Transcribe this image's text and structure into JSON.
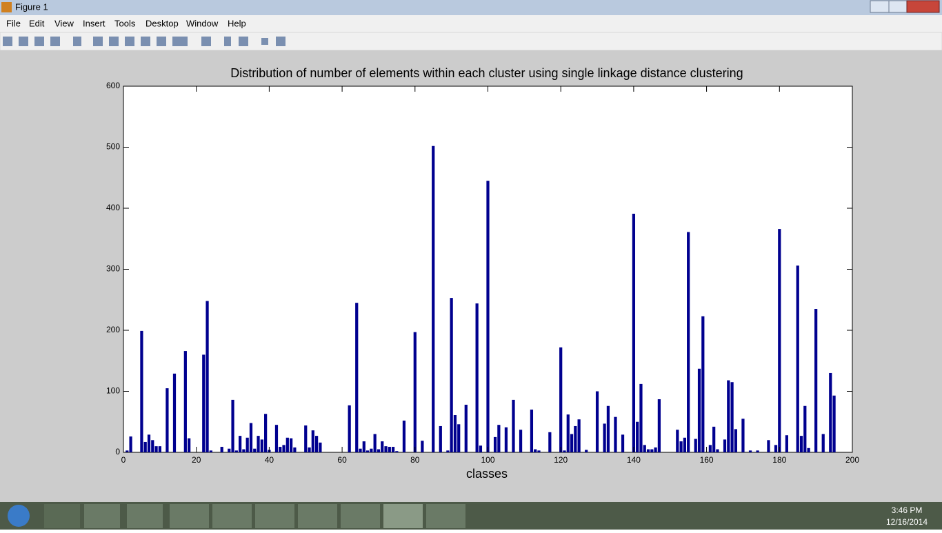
{
  "window": {
    "title": "Figure 1"
  },
  "menu": [
    "File",
    "Edit",
    "View",
    "Insert",
    "Tools",
    "Desktop",
    "Window",
    "Help"
  ],
  "chart_data": {
    "type": "bar",
    "title": "Distribution of number of elements within each cluster using single linkage distance clustering",
    "x_label": "classes",
    "color": "#00008f",
    "x": [
      1,
      2,
      3,
      4,
      5,
      6,
      7,
      8,
      9,
      10,
      11,
      12,
      13,
      14,
      15,
      16,
      17,
      18,
      19,
      20,
      21,
      22,
      23,
      24,
      25,
      26,
      27,
      28,
      29,
      30,
      31,
      32,
      33,
      34,
      35,
      36,
      37,
      38,
      39,
      40,
      41,
      42,
      43,
      44,
      45,
      46,
      47,
      48,
      49,
      50,
      51,
      52,
      53,
      54,
      55,
      56,
      57,
      58,
      59,
      60,
      61,
      62,
      63,
      64,
      65,
      66,
      67,
      68,
      69,
      70,
      71,
      72,
      73,
      74,
      75,
      76,
      77,
      78,
      79,
      80,
      81,
      82,
      83,
      84,
      85,
      86,
      87,
      88,
      89,
      90,
      91,
      92,
      93,
      94,
      95,
      96,
      97,
      98,
      99,
      100,
      101,
      102,
      103,
      104,
      105,
      106,
      107,
      108,
      109,
      110,
      111,
      112,
      113,
      114,
      115,
      116,
      117,
      118,
      119,
      120,
      121,
      122,
      123,
      124,
      125,
      126,
      127,
      128,
      129,
      130,
      131,
      132,
      133,
      134,
      135,
      136,
      137,
      138,
      139,
      140,
      141,
      142,
      143,
      144,
      145,
      146,
      147,
      148,
      149,
      150,
      151,
      152,
      153,
      154,
      155,
      156,
      157,
      158,
      159,
      160,
      161,
      162,
      163,
      164,
      165,
      166,
      167,
      168,
      169,
      170,
      171,
      172,
      173,
      174,
      175,
      176,
      177,
      178,
      179,
      180,
      181,
      182,
      183,
      184,
      185,
      186,
      187,
      188,
      189,
      190,
      191,
      192,
      193,
      194,
      195
    ],
    "values": [
      3,
      26,
      0,
      0,
      199,
      17,
      29,
      20,
      10,
      10,
      0,
      105,
      0,
      129,
      0,
      0,
      166,
      23,
      0,
      0,
      0,
      160,
      248,
      3,
      0,
      0,
      9,
      0,
      6,
      86,
      3,
      27,
      5,
      24,
      48,
      6,
      27,
      21,
      63,
      4,
      0,
      45,
      9,
      12,
      24,
      23,
      8,
      0,
      0,
      44,
      8,
      36,
      27,
      16,
      0,
      0,
      0,
      0,
      0,
      0,
      0,
      77,
      0,
      245,
      6,
      18,
      3,
      6,
      30,
      5,
      18,
      10,
      9,
      9,
      2,
      0,
      52,
      0,
      0,
      197,
      0,
      19,
      0,
      0,
      502,
      0,
      43,
      0,
      3,
      253,
      61,
      46,
      0,
      78,
      0,
      0,
      244,
      11,
      0,
      445,
      0,
      25,
      45,
      0,
      41,
      0,
      86,
      0,
      37,
      0,
      0,
      70,
      5,
      3,
      0,
      0,
      33,
      0,
      0,
      172,
      3,
      62,
      30,
      43,
      54,
      0,
      4,
      0,
      0,
      100,
      0,
      47,
      76,
      0,
      58,
      0,
      29,
      0,
      0,
      391,
      50,
      112,
      12,
      5,
      5,
      8,
      87,
      0,
      0,
      0,
      0,
      37,
      18,
      24,
      361,
      0,
      22,
      137,
      223,
      0,
      12,
      42,
      5,
      0,
      21,
      118,
      115,
      38,
      0,
      55,
      0,
      3,
      0,
      3,
      0,
      0,
      20,
      0,
      12,
      366,
      0,
      28,
      0,
      0,
      306,
      27,
      76,
      7,
      0,
      235,
      0,
      30,
      0,
      130,
      93
    ],
    "xlim": [
      0,
      200
    ],
    "xticks": [
      0,
      20,
      40,
      60,
      80,
      100,
      120,
      140,
      160,
      180,
      200
    ],
    "ylim": [
      0,
      600
    ],
    "yticks": [
      0,
      100,
      200,
      300,
      400,
      500,
      600
    ]
  },
  "clock": {
    "time": "3:46 PM",
    "date": "12/16/2014"
  }
}
